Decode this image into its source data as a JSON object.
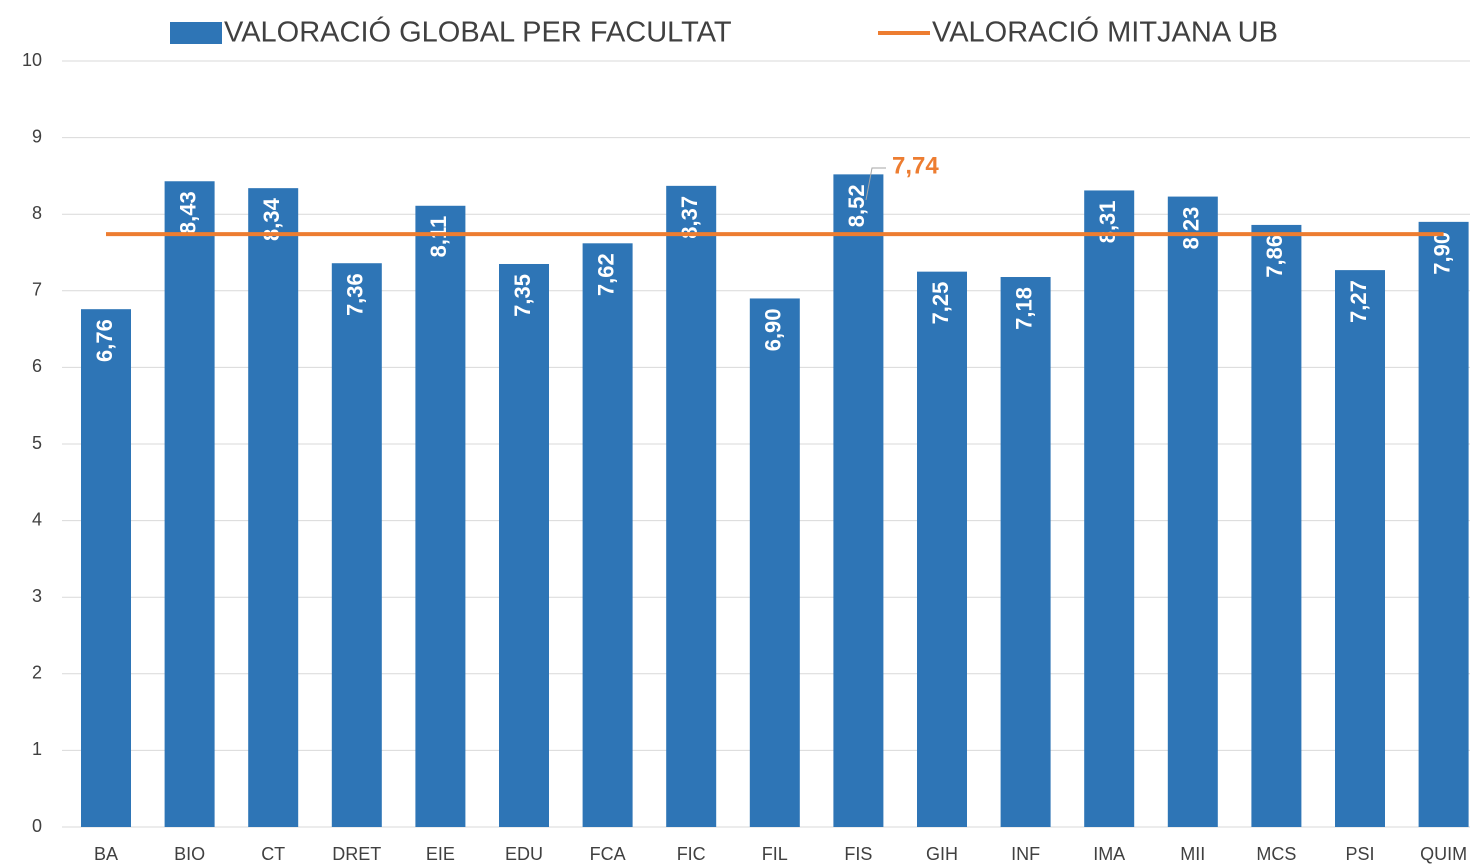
{
  "chart_data": {
    "type": "bar",
    "categories": [
      "BA",
      "BIO",
      "CT",
      "DRET",
      "EIE",
      "EDU",
      "FCA",
      "FIC",
      "FIL",
      "FIS",
      "GIH",
      "INF",
      "IMA",
      "MII",
      "MCS",
      "PSI",
      "QUIM"
    ],
    "series": [
      {
        "name": "VALORACIÓ GLOBAL PER FACULTAT",
        "color": "#2e75b6",
        "values": [
          6.76,
          8.43,
          8.34,
          7.36,
          8.11,
          7.35,
          7.62,
          8.37,
          6.9,
          8.52,
          7.25,
          7.18,
          8.31,
          8.23,
          7.86,
          7.27,
          7.9
        ],
        "value_labels": [
          "6,76",
          "8,43",
          "8,34",
          "7,36",
          "8,11",
          "7,35",
          "7,62",
          "8,37",
          "6,90",
          "8,52",
          "7,25",
          "7,18",
          "8,31",
          "8,23",
          "7,86",
          "7,27",
          "7,90"
        ]
      }
    ],
    "reference_line": {
      "name": "VALORACIÓ MITJANA UB",
      "color": "#ed7d31",
      "value": 7.74,
      "value_label": "7,74"
    },
    "ylim": [
      0,
      10
    ],
    "yticks": [
      0,
      1,
      2,
      3,
      4,
      5,
      6,
      7,
      8,
      9,
      10
    ],
    "grid": true
  }
}
